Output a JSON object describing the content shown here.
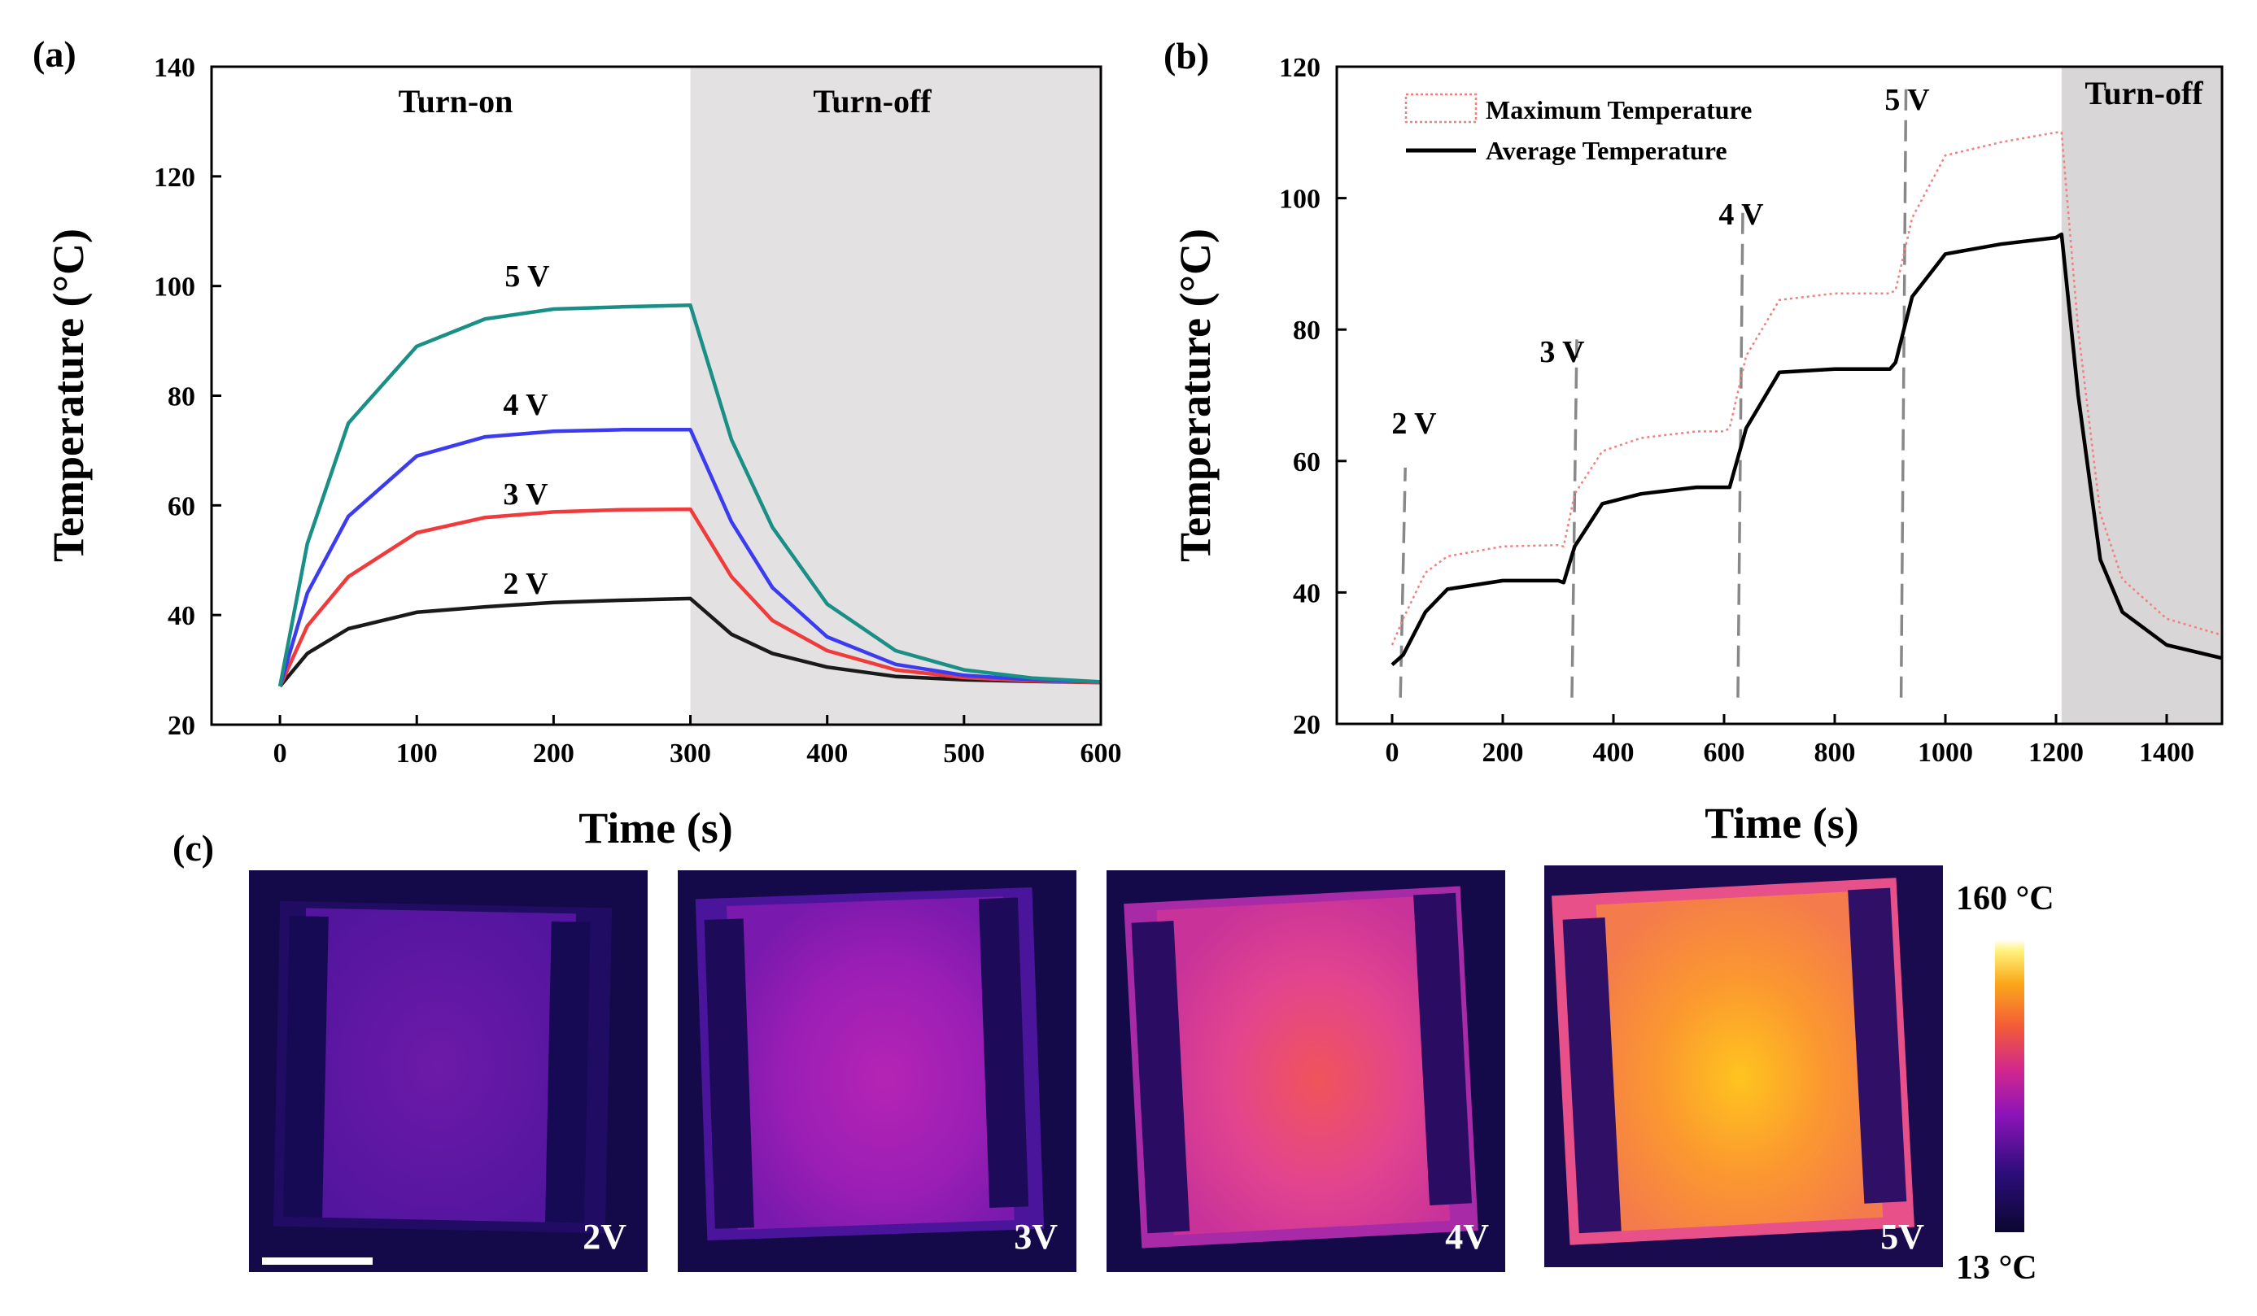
{
  "panel_labels": {
    "a": "(a)",
    "b": "(b)",
    "c": "(c)"
  },
  "chart_data": [
    {
      "id": "a",
      "type": "line",
      "title": "",
      "xlabel": "Time (s)",
      "ylabel": "Temperature (°C)",
      "xlim": [
        -50,
        600
      ],
      "ylim": [
        20,
        140
      ],
      "xticks": [
        0,
        100,
        200,
        300,
        400,
        500,
        600
      ],
      "yticks": [
        20,
        40,
        60,
        80,
        100,
        120,
        140
      ],
      "grid": false,
      "shaded_region": {
        "x": [
          300,
          600
        ],
        "color": "#e3e1e2"
      },
      "region_labels": {
        "on": "Turn-on",
        "off": "Turn-off"
      },
      "series": [
        {
          "name": "2 V",
          "color": "#1a1a1a",
          "x": [
            0,
            20,
            50,
            100,
            150,
            200,
            250,
            300,
            330,
            360,
            400,
            450,
            500,
            550,
            600
          ],
          "y": [
            27,
            33,
            37.5,
            40.5,
            41.5,
            42.3,
            42.7,
            43,
            36.5,
            33,
            30.5,
            28.8,
            28.2,
            27.9,
            27.7
          ]
        },
        {
          "name": "3 V",
          "color": "#ef3b3b",
          "x": [
            0,
            20,
            50,
            100,
            150,
            200,
            250,
            300,
            330,
            360,
            400,
            450,
            500,
            550,
            600
          ],
          "y": [
            27,
            38,
            47,
            55,
            57.8,
            58.8,
            59.2,
            59.3,
            47,
            39,
            33.5,
            30,
            28.6,
            28,
            27.7
          ]
        },
        {
          "name": "4 V",
          "color": "#3b3bf0",
          "x": [
            0,
            20,
            50,
            100,
            150,
            200,
            250,
            300,
            330,
            360,
            400,
            450,
            500,
            550,
            600
          ],
          "y": [
            27,
            44,
            58,
            69,
            72.5,
            73.5,
            73.8,
            73.8,
            57,
            45,
            36,
            31,
            29,
            28.2,
            27.8
          ]
        },
        {
          "name": "5 V",
          "color": "#1a8f86",
          "x": [
            0,
            20,
            50,
            100,
            150,
            200,
            250,
            300,
            330,
            360,
            400,
            450,
            500,
            550,
            600
          ],
          "y": [
            27,
            53,
            75,
            89,
            94,
            95.8,
            96.2,
            96.5,
            72,
            56,
            42,
            33.5,
            30,
            28.5,
            27.8
          ]
        }
      ],
      "annotations": [
        "2 V",
        "3 V",
        "4 V",
        "5 V"
      ]
    },
    {
      "id": "b",
      "type": "line",
      "title": "",
      "xlabel": "Time (s)",
      "ylabel": "Temperature (°C)",
      "xlim": [
        -100,
        1500
      ],
      "ylim": [
        20,
        120
      ],
      "xticks": [
        0,
        200,
        400,
        600,
        800,
        1000,
        1200,
        1400
      ],
      "yticks": [
        20,
        40,
        60,
        80,
        100,
        120
      ],
      "grid": false,
      "legend_position": "top-left",
      "shaded_region": {
        "x": [
          1210,
          1500
        ],
        "color": "#d8d6d7"
      },
      "region_labels": {
        "off": "Turn-off"
      },
      "series": [
        {
          "name": "Maximum Temperature",
          "color": "#f08080",
          "style": "dotted",
          "x": [
            0,
            20,
            60,
            100,
            200,
            300,
            310,
            330,
            380,
            450,
            550,
            600,
            610,
            640,
            700,
            800,
            900,
            910,
            940,
            1000,
            1100,
            1200,
            1210,
            1240,
            1280,
            1320,
            1400,
            1500
          ],
          "y": [
            32,
            36,
            43,
            45.5,
            47,
            47.2,
            47,
            55,
            61.5,
            63.5,
            64.5,
            64.5,
            65,
            76,
            84.5,
            85.5,
            85.5,
            86,
            97,
            106.5,
            108.5,
            110,
            110,
            80,
            52,
            42,
            36,
            33.5
          ]
        },
        {
          "name": "Average Temperature",
          "color": "#000000",
          "style": "solid",
          "x": [
            0,
            20,
            60,
            100,
            200,
            300,
            310,
            330,
            380,
            450,
            550,
            600,
            610,
            640,
            700,
            800,
            900,
            910,
            940,
            1000,
            1100,
            1200,
            1210,
            1240,
            1280,
            1320,
            1400,
            1500
          ],
          "y": [
            29,
            30.5,
            37,
            40.5,
            41.8,
            41.8,
            41.5,
            47,
            53.5,
            55,
            56,
            56,
            56,
            65,
            73.5,
            74,
            74,
            75,
            85,
            91.5,
            93,
            94,
            94.5,
            70,
            45,
            37,
            32,
            30
          ]
        }
      ],
      "annotations": [
        "2 V",
        "3 V",
        "4 V",
        "5 V"
      ],
      "step_markers_x": [
        15,
        325,
        625,
        920
      ]
    }
  ],
  "thermal_images": {
    "labels": [
      "2V",
      "3V",
      "4V",
      "5V"
    ],
    "colorbar": {
      "max_label": "160 °C",
      "min_label": "13 °C",
      "max": 160,
      "min": 13
    }
  }
}
